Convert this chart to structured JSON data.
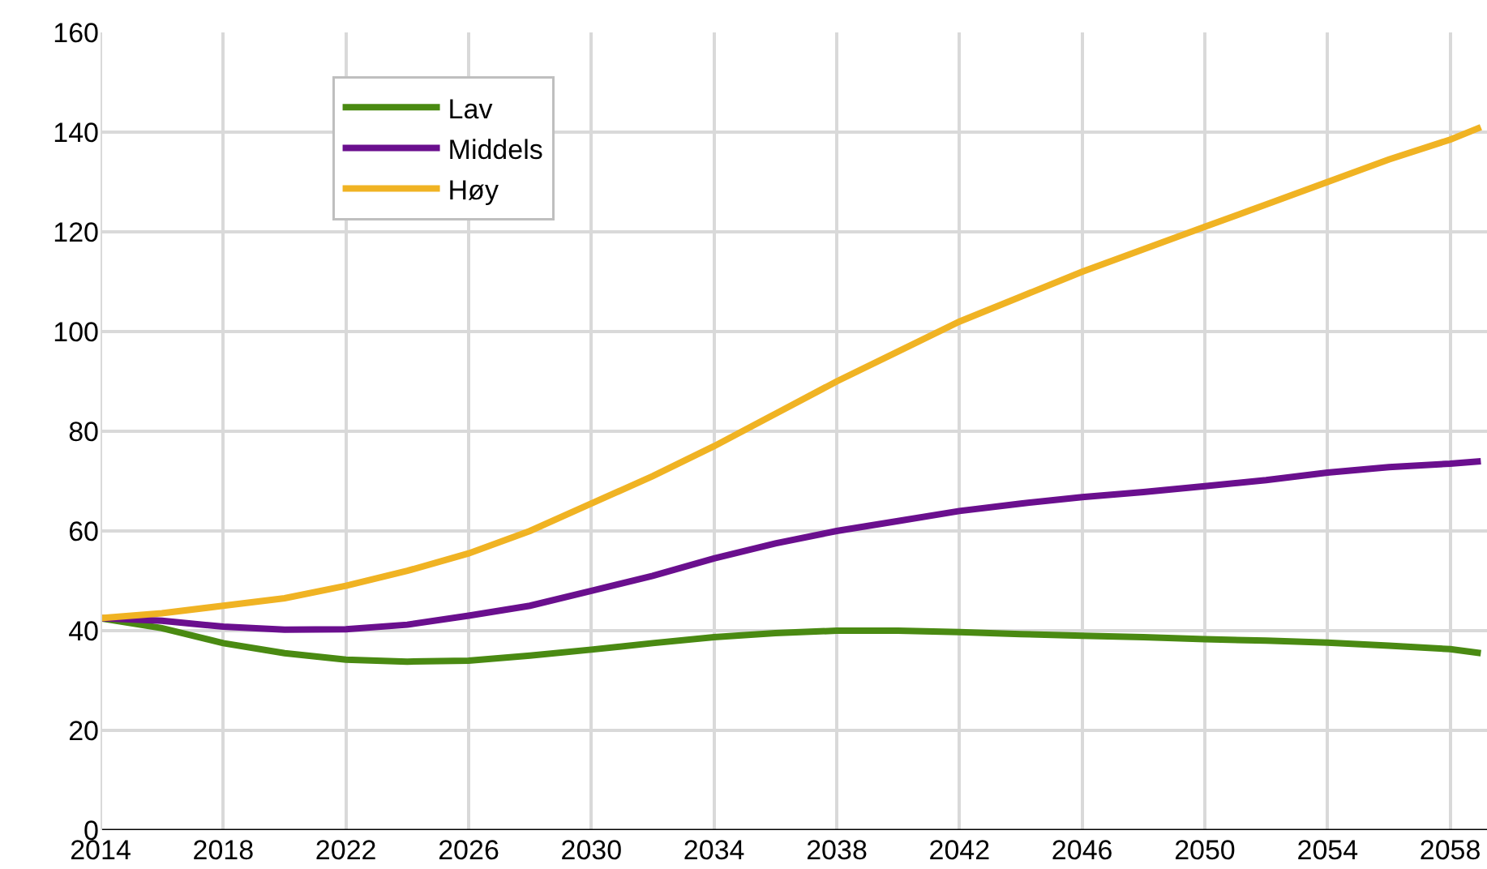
{
  "chart_data": {
    "type": "line",
    "x": [
      2014,
      2016,
      2018,
      2020,
      2022,
      2024,
      2026,
      2028,
      2030,
      2032,
      2034,
      2036,
      2038,
      2040,
      2042,
      2044,
      2046,
      2048,
      2050,
      2052,
      2054,
      2056,
      2058,
      2059
    ],
    "series": [
      {
        "name": "Lav",
        "color": "#4a8a12",
        "values": [
          42.5,
          40.5,
          37.5,
          35.5,
          34.2,
          33.8,
          34,
          35,
          36.2,
          37.5,
          38.7,
          39.5,
          40,
          40,
          39.7,
          39.3,
          39,
          38.7,
          38.3,
          38,
          37.6,
          37,
          36.3,
          35.5
        ]
      },
      {
        "name": "Middels",
        "color": "#6a0f8e",
        "values": [
          42.5,
          42,
          40.8,
          40.2,
          40.3,
          41.2,
          43,
          45,
          48,
          51,
          54.5,
          57.5,
          60,
          62,
          64,
          65.5,
          66.8,
          67.8,
          69,
          70.2,
          71.7,
          72.8,
          73.5,
          74
        ]
      },
      {
        "name": "Høy",
        "color": "#f0b323",
        "values": [
          42.5,
          43.5,
          45,
          46.5,
          49,
          52,
          55.5,
          60,
          65.5,
          71,
          77,
          83.5,
          90,
          96,
          102,
          107,
          112,
          116.5,
          121,
          125.5,
          130,
          134.5,
          138.5,
          141
        ]
      }
    ],
    "xlim": [
      2014,
      2059.2
    ],
    "xticks": [
      2014,
      2018,
      2022,
      2026,
      2030,
      2034,
      2038,
      2042,
      2046,
      2050,
      2054,
      2058
    ],
    "ylim": [
      0,
      160
    ],
    "yticks": [
      0,
      20,
      40,
      60,
      80,
      100,
      120,
      140,
      160
    ],
    "grid": true,
    "legend": "top left",
    "marker": "none",
    "line_style": "solid"
  }
}
